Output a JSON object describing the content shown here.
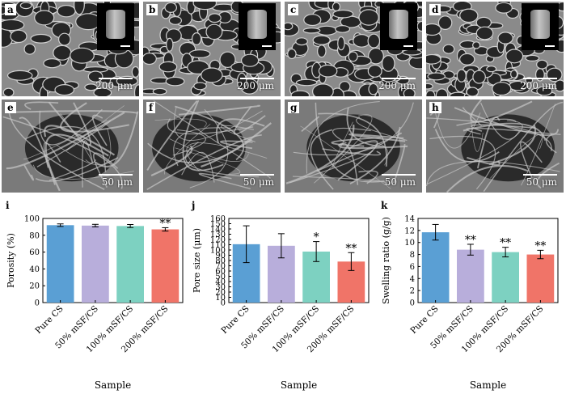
{
  "sem_panels": [
    {
      "id": "a",
      "scale": "200 μm",
      "inset": true
    },
    {
      "id": "b",
      "scale": "200 μm",
      "inset": true
    },
    {
      "id": "c",
      "scale": "200 μm",
      "inset": true
    },
    {
      "id": "d",
      "scale": "200 μm",
      "inset": true
    },
    {
      "id": "e",
      "scale": "50 μm",
      "inset": false
    },
    {
      "id": "f",
      "scale": "50 μm",
      "inset": false
    },
    {
      "id": "g",
      "scale": "50 μm",
      "inset": false
    },
    {
      "id": "h",
      "scale": "50 μm",
      "inset": false
    }
  ],
  "colors": {
    "pure": "#5a9fd4",
    "s50": "#b8aedb",
    "s100": "#7dd1c1",
    "s200": "#f07468"
  },
  "chart_data": [
    {
      "panel": "i",
      "type": "bar",
      "categories": [
        "Pure CS",
        "50% mSF/CS",
        "100% mSF/CS",
        "200% mSF/CS"
      ],
      "values": [
        92,
        91.5,
        91,
        87
      ],
      "errors": [
        1.5,
        1.5,
        1.8,
        2
      ],
      "significance": [
        "",
        "",
        "",
        "**"
      ],
      "xlabel": "Sample",
      "ylabel": "Porosity (%)",
      "ylim": [
        0,
        100
      ],
      "yticks": [
        "0",
        "20",
        "40",
        "60",
        "80",
        "100"
      ]
    },
    {
      "panel": "j",
      "type": "bar",
      "categories": [
        "Pure CS",
        "50% mSF/CS",
        "100% mSF/CS",
        "200% mSF/CS"
      ],
      "values": [
        111,
        108,
        97,
        78
      ],
      "errors": [
        35,
        23,
        19,
        17
      ],
      "significance": [
        "",
        "",
        "*",
        "**"
      ],
      "xlabel": "Sample",
      "ylabel": "Pore size (μm)",
      "ylim": [
        0,
        160
      ],
      "yticks": [
        "0",
        "10",
        "20",
        "30",
        "40",
        "50",
        "60",
        "70",
        "80",
        "90",
        "100",
        "110",
        "120",
        "130",
        "140",
        "150",
        "160"
      ]
    },
    {
      "panel": "k",
      "type": "bar",
      "categories": [
        "Pure CS",
        "50% mSF/CS",
        "100% mSF/CS",
        "200% mSF/CS"
      ],
      "values": [
        11.7,
        8.8,
        8.4,
        8.0
      ],
      "errors": [
        1.3,
        0.9,
        0.8,
        0.7
      ],
      "significance": [
        "",
        "**",
        "**",
        "**"
      ],
      "xlabel": "Sample",
      "ylabel": "Swelling ratio (g/g)",
      "ylim": [
        0,
        14
      ],
      "yticks": [
        "0",
        "2",
        "4",
        "6",
        "8",
        "10",
        "12",
        "14"
      ]
    }
  ]
}
